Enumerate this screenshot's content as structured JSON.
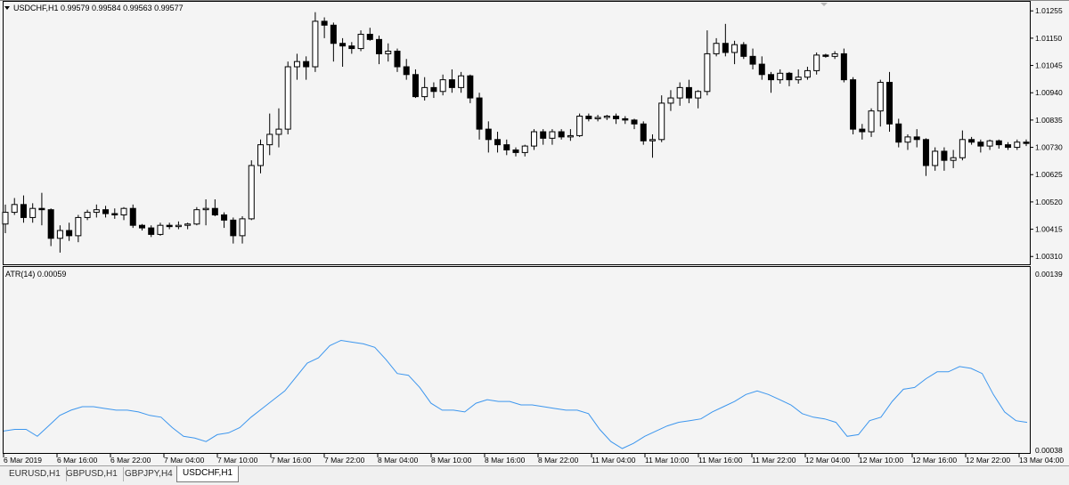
{
  "main_chart": {
    "header": "USDCHF,H1  0.99579 0.99584 0.99563 0.99577",
    "price_labels": [
      "1.01255",
      "1.01150",
      "1.01045",
      "1.00940",
      "1.00835",
      "1.00730",
      "1.00625",
      "1.00520",
      "1.00415",
      "1.00310"
    ],
    "y_range": [
      1.0028,
      1.0129
    ]
  },
  "indicator": {
    "header": "ATR(14) 0.00059",
    "labels": [
      "0.00139",
      "0.00038"
    ],
    "y_range": [
      0.00038,
      0.00139
    ]
  },
  "time_labels": [
    "6 Mar 2019",
    "6 Mar 16:00",
    "6 Mar 22:00",
    "7 Mar 04:00",
    "7 Mar 10:00",
    "7 Mar 16:00",
    "7 Mar 22:00",
    "8 Mar 04:00",
    "8 Mar 10:00",
    "8 Mar 16:00",
    "8 Mar 22:00",
    "11 Mar 04:00",
    "11 Mar 10:00",
    "11 Mar 16:00",
    "11 Mar 22:00",
    "12 Mar 04:00",
    "12 Mar 10:00",
    "12 Mar 16:00",
    "12 Mar 22:00",
    "13 Mar 04:00"
  ],
  "tabs": [
    {
      "label": "EURUSD,H1",
      "active": false
    },
    {
      "label": "GBPUSD,H1",
      "active": false
    },
    {
      "label": "GBPJPY,H4",
      "active": false
    },
    {
      "label": "USDCHF,H1",
      "active": true
    }
  ],
  "colors": {
    "bull": "#ffffff",
    "bear": "#000000",
    "atr_line": "#3c96ee",
    "border": "#000000"
  },
  "chart_data": [
    {
      "type": "candlestick",
      "title": "USDCHF,H1",
      "ohlc": [
        [
          1.00435,
          1.0051,
          1.004,
          1.0048
        ],
        [
          1.0048,
          1.00535,
          1.0047,
          1.0051
        ],
        [
          1.0051,
          1.00545,
          1.0044,
          1.0046
        ],
        [
          1.0046,
          1.00515,
          1.0044,
          1.00495
        ],
        [
          1.00495,
          1.00555,
          1.0043,
          1.0049
        ],
        [
          1.0049,
          1.00495,
          1.0035,
          1.0038
        ],
        [
          1.0038,
          1.0043,
          1.00325,
          1.0041
        ],
        [
          1.0041,
          1.0044,
          1.0037,
          1.0039
        ],
        [
          1.0039,
          1.0047,
          1.00365,
          1.0046
        ],
        [
          1.0046,
          1.0049,
          1.0045,
          1.0048
        ],
        [
          1.0048,
          1.0051,
          1.0046,
          1.0049
        ],
        [
          1.0049,
          1.00505,
          1.0046,
          1.00475
        ],
        [
          1.00475,
          1.00495,
          1.00455,
          1.0047
        ],
        [
          1.0047,
          1.005,
          1.0045,
          1.00495
        ],
        [
          1.00495,
          1.0051,
          1.0042,
          1.0043
        ],
        [
          1.0043,
          1.00435,
          1.0041,
          1.0042
        ],
        [
          1.0042,
          1.0043,
          1.00385,
          1.00395
        ],
        [
          1.00395,
          1.0044,
          1.0039,
          1.0043
        ],
        [
          1.0043,
          1.0044,
          1.00415,
          1.00425
        ],
        [
          1.00425,
          1.00445,
          1.00415,
          1.0043
        ],
        [
          1.0043,
          1.0044,
          1.00415,
          1.00435
        ],
        [
          1.00435,
          1.005,
          1.0043,
          1.0049
        ],
        [
          1.0049,
          1.0053,
          1.0043,
          1.00495
        ],
        [
          1.00495,
          1.0053,
          1.00465,
          1.0047
        ],
        [
          1.0047,
          1.0048,
          1.0042,
          1.0045
        ],
        [
          1.0045,
          1.0046,
          1.0036,
          1.0039
        ],
        [
          1.0039,
          1.00465,
          1.0036,
          1.00455
        ],
        [
          1.00455,
          1.0068,
          1.0045,
          1.0066
        ],
        [
          1.0066,
          1.0076,
          1.0063,
          1.0074
        ],
        [
          1.0074,
          1.0086,
          1.007,
          1.0078
        ],
        [
          1.0078,
          1.0088,
          1.0073,
          1.008
        ],
        [
          1.008,
          1.0106,
          1.0078,
          1.0104
        ],
        [
          1.0104,
          1.0109,
          1.0099,
          1.0106
        ],
        [
          1.0106,
          1.0108,
          1.0099,
          1.0104
        ],
        [
          1.0104,
          1.0125,
          1.0102,
          1.01215
        ],
        [
          1.01215,
          1.0123,
          1.0115,
          1.012
        ],
        [
          1.012,
          1.0121,
          1.0106,
          1.0113
        ],
        [
          1.0113,
          1.0115,
          1.0104,
          1.0112
        ],
        [
          1.0112,
          1.01135,
          1.0109,
          1.0111
        ],
        [
          1.0111,
          1.0118,
          1.011,
          1.01165
        ],
        [
          1.01165,
          1.0119,
          1.0114,
          1.01145
        ],
        [
          1.01145,
          1.0116,
          1.0105,
          1.0109
        ],
        [
          1.0109,
          1.0113,
          1.0106,
          1.011
        ],
        [
          1.011,
          1.0111,
          1.0102,
          1.0104
        ],
        [
          1.0104,
          1.0107,
          1.0099,
          1.0101
        ],
        [
          1.0101,
          1.0103,
          1.0092,
          1.00925
        ],
        [
          1.00925,
          1.01,
          1.0091,
          1.0096
        ],
        [
          1.0096,
          1.0098,
          1.0092,
          1.00945
        ],
        [
          1.00945,
          1.0101,
          1.0093,
          1.0099
        ],
        [
          1.0099,
          1.0103,
          1.0094,
          1.0096
        ],
        [
          1.0096,
          1.0102,
          1.0094,
          1.01005
        ],
        [
          1.01005,
          1.0101,
          1.009,
          1.0092
        ],
        [
          1.0092,
          1.0094,
          1.0076,
          1.008
        ],
        [
          1.008,
          1.0083,
          1.0071,
          1.0076
        ],
        [
          1.0076,
          1.0079,
          1.0071,
          1.0074
        ],
        [
          1.0074,
          1.0076,
          1.007,
          1.0072
        ],
        [
          1.0072,
          1.0073,
          1.00695,
          1.0071
        ],
        [
          1.0071,
          1.0074,
          1.00695,
          1.00735
        ],
        [
          1.00735,
          1.008,
          1.0072,
          1.0079
        ],
        [
          1.0079,
          1.008,
          1.0074,
          1.00765
        ],
        [
          1.00765,
          1.008,
          1.0074,
          1.0079
        ],
        [
          1.0079,
          1.008,
          1.0076,
          1.0077
        ],
        [
          1.0077,
          1.008,
          1.00755,
          1.00775
        ],
        [
          1.00775,
          1.0086,
          1.0077,
          1.0085
        ],
        [
          1.0085,
          1.0086,
          1.0083,
          1.0084
        ],
        [
          1.0084,
          1.00855,
          1.0083,
          1.00845
        ],
        [
          1.00845,
          1.00855,
          1.00835,
          1.0085
        ],
        [
          1.0085,
          1.0086,
          1.0082,
          1.0084
        ],
        [
          1.0084,
          1.0085,
          1.0082,
          1.00835
        ],
        [
          1.00835,
          1.0084,
          1.008,
          1.0082
        ],
        [
          1.0082,
          1.0083,
          1.0074,
          1.00755
        ],
        [
          1.00755,
          1.0078,
          1.0069,
          1.0076
        ],
        [
          1.0076,
          1.0093,
          1.0075,
          1.009
        ],
        [
          1.009,
          1.0095,
          1.0087,
          1.0092
        ],
        [
          1.0092,
          1.0098,
          1.0089,
          1.0096
        ],
        [
          1.0096,
          1.0099,
          1.009,
          1.0092
        ],
        [
          1.0092,
          1.0095,
          1.0088,
          1.00945
        ],
        [
          1.00945,
          1.0118,
          1.0093,
          1.0109
        ],
        [
          1.0109,
          1.0115,
          1.0108,
          1.0113
        ],
        [
          1.0113,
          1.01205,
          1.0108,
          1.01095
        ],
        [
          1.01095,
          1.0114,
          1.0105,
          1.01125
        ],
        [
          1.01125,
          1.01135,
          1.0107,
          1.0108
        ],
        [
          1.0108,
          1.0111,
          1.0103,
          1.0105
        ],
        [
          1.0105,
          1.0108,
          1.0099,
          1.0101
        ],
        [
          1.0101,
          1.0102,
          1.0094,
          1.0099
        ],
        [
          1.0099,
          1.0103,
          1.00975,
          1.01015
        ],
        [
          1.01015,
          1.0102,
          1.00965,
          1.0099
        ],
        [
          1.0099,
          1.0103,
          1.00975,
          1.01
        ],
        [
          1.01,
          1.0104,
          1.0099,
          1.01025
        ],
        [
          1.01025,
          1.01095,
          1.0101,
          1.01085
        ],
        [
          1.01085,
          1.0109,
          1.01075,
          1.0108
        ],
        [
          1.0108,
          1.011,
          1.0107,
          1.0109
        ],
        [
          1.0109,
          1.0111,
          1.0098,
          1.0099
        ],
        [
          1.0099,
          1.01,
          1.0078,
          1.008
        ],
        [
          1.008,
          1.0082,
          1.0076,
          1.0079
        ],
        [
          1.0079,
          1.0088,
          1.0077,
          1.0087
        ],
        [
          1.0087,
          1.0099,
          1.0081,
          1.0098
        ],
        [
          1.0098,
          1.0102,
          1.0079,
          1.0082
        ],
        [
          1.0082,
          1.0084,
          1.0073,
          1.0075
        ],
        [
          1.0075,
          1.0078,
          1.0072,
          1.0077
        ],
        [
          1.0077,
          1.008,
          1.0073,
          1.0076
        ],
        [
          1.0076,
          1.00765,
          1.0062,
          1.0066
        ],
        [
          1.0066,
          1.0073,
          1.0064,
          1.00715
        ],
        [
          1.00715,
          1.0073,
          1.0064,
          1.0068
        ],
        [
          1.0068,
          1.0072,
          1.0065,
          1.0069
        ],
        [
          1.0069,
          1.00795,
          1.0068,
          1.0076
        ],
        [
          1.0076,
          1.0077,
          1.0074,
          1.0075
        ],
        [
          1.0075,
          1.0076,
          1.0071,
          1.00735
        ],
        [
          1.00735,
          1.0076,
          1.0072,
          1.00755
        ],
        [
          1.00755,
          1.0076,
          1.00725,
          1.0074
        ],
        [
          1.0074,
          1.0075,
          1.0072,
          1.0073
        ],
        [
          1.0073,
          1.0076,
          1.0072,
          1.0075
        ],
        [
          1.0075,
          1.0076,
          1.00735,
          1.00745
        ]
      ]
    },
    {
      "type": "line",
      "title": "ATR(14)",
      "ylim": [
        0.00038,
        0.00139
      ],
      "values": [
        0.00049,
        0.0005,
        0.0005,
        0.00046,
        0.00052,
        0.00058,
        0.00061,
        0.00063,
        0.00063,
        0.00062,
        0.00061,
        0.00061,
        0.0006,
        0.00058,
        0.00057,
        0.00051,
        0.00046,
        0.00045,
        0.00043,
        0.00047,
        0.00048,
        0.00051,
        0.00057,
        0.00062,
        0.00067,
        0.00072,
        0.0008,
        0.00088,
        0.00091,
        0.00098,
        0.00101,
        0.001,
        0.00099,
        0.00097,
        0.0009,
        0.00082,
        0.00081,
        0.00074,
        0.00065,
        0.00061,
        0.00061,
        0.0006,
        0.00065,
        0.00067,
        0.00066,
        0.00066,
        0.00064,
        0.00064,
        0.00063,
        0.00062,
        0.00061,
        0.00061,
        0.00059,
        0.0005,
        0.00043,
        0.00039,
        0.00042,
        0.00046,
        0.00049,
        0.00052,
        0.00054,
        0.00055,
        0.00056,
        0.0006,
        0.00063,
        0.00066,
        0.0007,
        0.00072,
        0.0007,
        0.00067,
        0.00064,
        0.00059,
        0.00057,
        0.00056,
        0.00054,
        0.00046,
        0.00047,
        0.00055,
        0.00057,
        0.00066,
        0.00073,
        0.00074,
        0.00079,
        0.00083,
        0.00083,
        0.00086,
        0.00085,
        0.00082,
        0.0007,
        0.0006,
        0.00055,
        0.00054
      ]
    }
  ]
}
